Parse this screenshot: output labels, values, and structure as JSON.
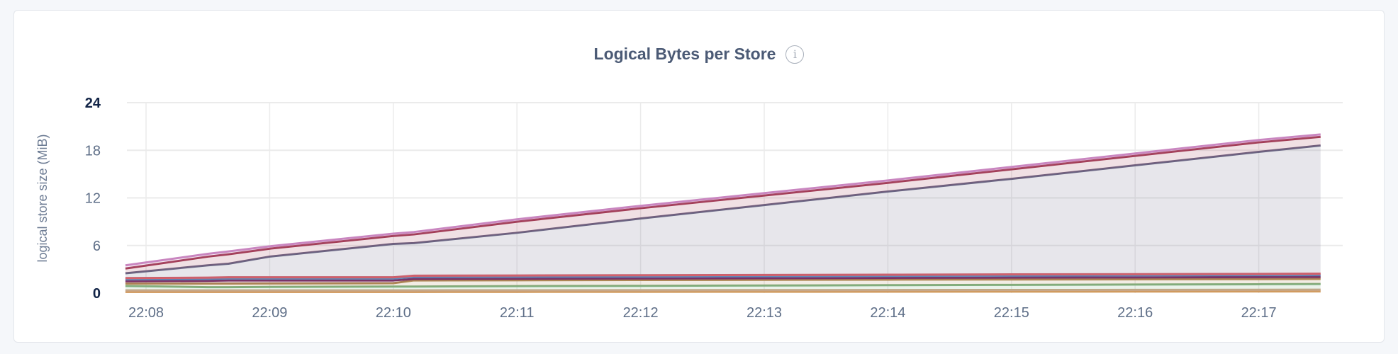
{
  "card": {
    "title": "Logical Bytes per Store",
    "info_icon": "info-circle-icon",
    "info_glyph": "i"
  },
  "chart_data": {
    "type": "area",
    "stacked": true,
    "title": "Logical Bytes per Store",
    "xlabel": "",
    "ylabel": "logical store size (MiB)",
    "ylim": [
      0,
      24
    ],
    "yticks": [
      "0",
      "6",
      "12",
      "18",
      "24"
    ],
    "xticks": [
      "22:08",
      "22:09",
      "22:10",
      "22:11",
      "22:12",
      "22:13",
      "22:14",
      "22:15",
      "22:16",
      "22:17"
    ],
    "grid": true,
    "x": [
      "22:07:50",
      "22:08:30",
      "22:08:40",
      "22:09:00",
      "22:10:00",
      "22:10:10",
      "22:11:00",
      "22:12:00",
      "22:13:00",
      "22:14:00",
      "22:15:00",
      "22:16:00",
      "22:17:00",
      "22:17:30"
    ],
    "series": [
      {
        "color": "#d19a5c",
        "values": [
          0.15,
          0.15,
          0.15,
          0.15,
          0.15,
          0.15,
          0.16,
          0.17,
          0.18,
          0.19,
          0.2,
          0.21,
          0.22,
          0.23
        ]
      },
      {
        "color": "#c9a78a",
        "values": [
          0.2,
          0.2,
          0.2,
          0.2,
          0.2,
          0.2,
          0.2,
          0.2,
          0.2,
          0.2,
          0.2,
          0.2,
          0.2,
          0.2
        ]
      },
      {
        "color": "#7fb07f",
        "values": [
          0.55,
          0.4,
          0.4,
          0.43,
          0.47,
          0.48,
          0.52,
          0.55,
          0.58,
          0.61,
          0.64,
          0.67,
          0.7,
          0.72
        ]
      },
      {
        "color": "#b08a55",
        "values": [
          0.3,
          0.45,
          0.45,
          0.44,
          0.43,
          0.77,
          0.74,
          0.73,
          0.71,
          0.7,
          0.68,
          0.66,
          0.64,
          0.63
        ]
      },
      {
        "color": "#7a2e63",
        "values": [
          0.3,
          0.35,
          0.4,
          0.38,
          0.35,
          0.2,
          0.2,
          0.2,
          0.22,
          0.22,
          0.24,
          0.25,
          0.26,
          0.27
        ]
      },
      {
        "color": "#5f88b8",
        "values": [
          0.25,
          0.25,
          0.25,
          0.25,
          0.25,
          0.25,
          0.25,
          0.25,
          0.25,
          0.25,
          0.25,
          0.25,
          0.25,
          0.25
        ]
      },
      {
        "color": "#d9606a",
        "values": [
          0.15,
          0.15,
          0.15,
          0.15,
          0.15,
          0.15,
          0.15,
          0.15,
          0.15,
          0.15,
          0.15,
          0.15,
          0.15,
          0.15
        ]
      },
      {
        "color": "#6a6583",
        "values": [
          0.6,
          1.55,
          1.7,
          2.6,
          4.2,
          4.1,
          5.38,
          7.15,
          8.81,
          10.48,
          12.04,
          13.71,
          15.38,
          16.15
        ]
      },
      {
        "color": "#a23c55",
        "values": [
          0.6,
          1.1,
          1.2,
          1.0,
          1.0,
          1.1,
          1.4,
          1.3,
          1.2,
          1.1,
          1.2,
          1.2,
          1.2,
          1.1
        ]
      },
      {
        "color": "#c986c0",
        "values": [
          0.4,
          0.35,
          0.35,
          0.3,
          0.3,
          0.3,
          0.3,
          0.3,
          0.3,
          0.3,
          0.3,
          0.3,
          0.3,
          0.3
        ]
      }
    ]
  }
}
